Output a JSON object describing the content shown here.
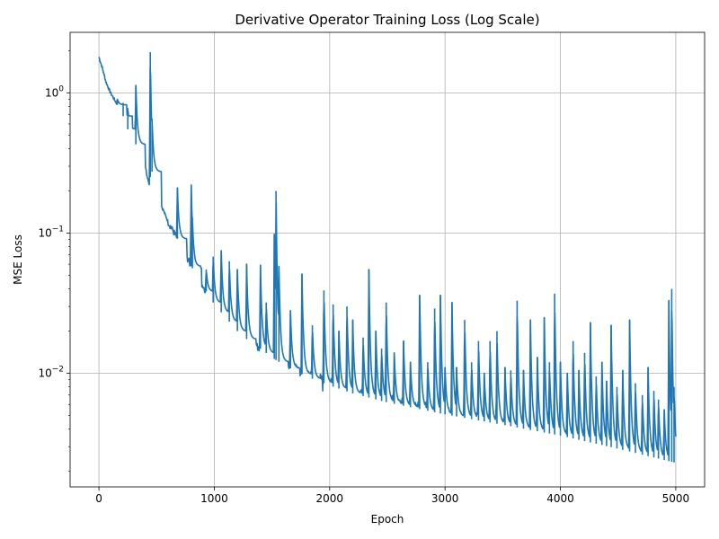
{
  "chart_data": {
    "type": "line",
    "title": "Derivative Operator Training Loss (Log Scale)",
    "xlabel": "Epoch",
    "ylabel": "MSE Loss",
    "xlim": [
      -250,
      5250
    ],
    "ylim": [
      0.00155,
      2.7
    ],
    "y_scale": "log",
    "grid": true,
    "x_ticks": [
      {
        "value": 0,
        "label": "0"
      },
      {
        "value": 1000,
        "label": "1000"
      },
      {
        "value": 2000,
        "label": "2000"
      },
      {
        "value": 3000,
        "label": "3000"
      },
      {
        "value": 4000,
        "label": "4000"
      },
      {
        "value": 5000,
        "label": "5000"
      }
    ],
    "y_ticks": [
      {
        "value": 0.01,
        "base": "10",
        "exp": "−2"
      },
      {
        "value": 0.1,
        "base": "10",
        "exp": "−1"
      },
      {
        "value": 1,
        "base": "10",
        "exp": "0"
      }
    ],
    "series": [
      {
        "color": "#1f77b4",
        "baseline": {
          "x": [
            0,
            30,
            60,
            100,
            150,
            200,
            250,
            300,
            350,
            400,
            440,
            450,
            500,
            600,
            700,
            800,
            900,
            1000,
            1100,
            1200,
            1300,
            1400,
            1500,
            1600,
            1800,
            2000,
            2200,
            2500,
            3000,
            3500,
            4000,
            4500,
            5000
          ],
          "y": [
            1.8,
            1.5,
            1.2,
            1.0,
            0.85,
            0.72,
            0.55,
            0.45,
            0.4,
            0.3,
            0.21,
            0.3,
            0.19,
            0.12,
            0.085,
            0.058,
            0.042,
            0.031,
            0.025,
            0.02,
            0.017,
            0.015,
            0.013,
            0.0115,
            0.0095,
            0.0082,
            0.0072,
            0.0062,
            0.0051,
            0.0043,
            0.0036,
            0.0029,
            0.0023
          ]
        },
        "spikes": [
          {
            "x": 160,
            "y": 0.9
          },
          {
            "x": 210,
            "y": 0.85
          },
          {
            "x": 250,
            "y": 0.78
          },
          {
            "x": 320,
            "y": 1.13
          },
          {
            "x": 445,
            "y": 1.95
          },
          {
            "x": 460,
            "y": 0.65
          },
          {
            "x": 680,
            "y": 0.21
          },
          {
            "x": 800,
            "y": 0.22
          },
          {
            "x": 810,
            "y": 0.13
          },
          {
            "x": 930,
            "y": 0.055
          },
          {
            "x": 990,
            "y": 0.068
          },
          {
            "x": 1060,
            "y": 0.075
          },
          {
            "x": 1130,
            "y": 0.063
          },
          {
            "x": 1200,
            "y": 0.055
          },
          {
            "x": 1280,
            "y": 0.06
          },
          {
            "x": 1400,
            "y": 0.059
          },
          {
            "x": 1450,
            "y": 0.032
          },
          {
            "x": 1520,
            "y": 0.098
          },
          {
            "x": 1535,
            "y": 0.2
          },
          {
            "x": 1560,
            "y": 0.058
          },
          {
            "x": 1660,
            "y": 0.028
          },
          {
            "x": 1760,
            "y": 0.051
          },
          {
            "x": 1850,
            "y": 0.022
          },
          {
            "x": 1950,
            "y": 0.039
          },
          {
            "x": 2030,
            "y": 0.031
          },
          {
            "x": 2080,
            "y": 0.02
          },
          {
            "x": 2150,
            "y": 0.03
          },
          {
            "x": 2200,
            "y": 0.024
          },
          {
            "x": 2290,
            "y": 0.018
          },
          {
            "x": 2340,
            "y": 0.055
          },
          {
            "x": 2400,
            "y": 0.02
          },
          {
            "x": 2450,
            "y": 0.015
          },
          {
            "x": 2490,
            "y": 0.032
          },
          {
            "x": 2560,
            "y": 0.014
          },
          {
            "x": 2640,
            "y": 0.017
          },
          {
            "x": 2700,
            "y": 0.012
          },
          {
            "x": 2780,
            "y": 0.036
          },
          {
            "x": 2850,
            "y": 0.012
          },
          {
            "x": 2910,
            "y": 0.029
          },
          {
            "x": 2960,
            "y": 0.036
          },
          {
            "x": 3000,
            "y": 0.011
          },
          {
            "x": 3060,
            "y": 0.032
          },
          {
            "x": 3100,
            "y": 0.011
          },
          {
            "x": 3170,
            "y": 0.024
          },
          {
            "x": 3230,
            "y": 0.012
          },
          {
            "x": 3290,
            "y": 0.017
          },
          {
            "x": 3340,
            "y": 0.01
          },
          {
            "x": 3390,
            "y": 0.017
          },
          {
            "x": 3450,
            "y": 0.02
          },
          {
            "x": 3520,
            "y": 0.011
          },
          {
            "x": 3570,
            "y": 0.0105
          },
          {
            "x": 3625,
            "y": 0.033
          },
          {
            "x": 3680,
            "y": 0.0105
          },
          {
            "x": 3740,
            "y": 0.024
          },
          {
            "x": 3800,
            "y": 0.013
          },
          {
            "x": 3860,
            "y": 0.025
          },
          {
            "x": 3905,
            "y": 0.012
          },
          {
            "x": 3950,
            "y": 0.037
          },
          {
            "x": 4000,
            "y": 0.012
          },
          {
            "x": 4060,
            "y": 0.01
          },
          {
            "x": 4110,
            "y": 0.017
          },
          {
            "x": 4160,
            "y": 0.0105
          },
          {
            "x": 4210,
            "y": 0.014
          },
          {
            "x": 4260,
            "y": 0.023
          },
          {
            "x": 4310,
            "y": 0.0095
          },
          {
            "x": 4360,
            "y": 0.012
          },
          {
            "x": 4400,
            "y": 0.0088
          },
          {
            "x": 4440,
            "y": 0.022
          },
          {
            "x": 4490,
            "y": 0.008
          },
          {
            "x": 4540,
            "y": 0.0105
          },
          {
            "x": 4600,
            "y": 0.024
          },
          {
            "x": 4650,
            "y": 0.0085
          },
          {
            "x": 4710,
            "y": 0.007
          },
          {
            "x": 4760,
            "y": 0.011
          },
          {
            "x": 4810,
            "y": 0.0075
          },
          {
            "x": 4850,
            "y": 0.0065
          },
          {
            "x": 4900,
            "y": 0.0055
          },
          {
            "x": 4940,
            "y": 0.033
          },
          {
            "x": 4965,
            "y": 0.04
          },
          {
            "x": 4985,
            "y": 0.008
          }
        ]
      }
    ]
  }
}
